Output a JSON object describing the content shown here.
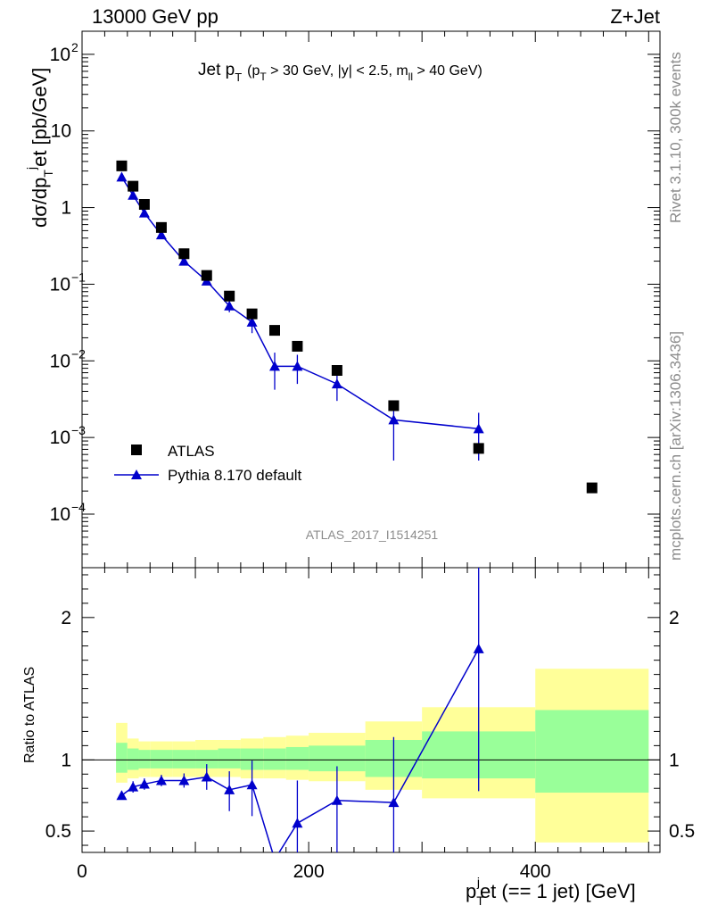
{
  "header": {
    "left": "13000 GeV pp",
    "right": "Z+Jet"
  },
  "side": {
    "rivet": "Rivet 3.1.10,  300k events",
    "mcplots": "mcplots.cern.ch [arXiv:1306.3436]"
  },
  "plot_title": {
    "main": "Jet p",
    "main_sub": "T",
    "cond_open": "(p",
    "cond_sub": "T",
    "cond_mid": " > 30 GeV, |y| < 2.5, m",
    "cond_sub2": "ll",
    "cond_end": " > 40 GeV)"
  },
  "ylabel_main": "dσ/dp",
  "ylabel_main_sup": "j",
  "ylabel_main_sub": "T",
  "ylabel_main_tail": "et [pb/GeV]",
  "ylabel_ratio": "Ratio to ATLAS",
  "xlabel": {
    "pre": "p",
    "sup": "j",
    "sub": "T",
    "post": "et (== 1 jet) [GeV]"
  },
  "watermark": "ATLAS_2017_I1514251",
  "legend": {
    "data": "ATLAS",
    "mc": "Pythia 8.170 default"
  },
  "colors": {
    "mc": "#0000cc",
    "data": "#000000",
    "band_inner": "#99ff99",
    "band_outer": "#ffff99"
  },
  "yticks_main": [
    {
      "v": 100,
      "base": "10",
      "exp": "2"
    },
    {
      "v": 10,
      "base": "10",
      "exp": ""
    },
    {
      "v": 1,
      "base": "1",
      "exp": ""
    },
    {
      "v": 0.1,
      "base": "10",
      "exp": "−1"
    },
    {
      "v": 0.01,
      "base": "10",
      "exp": "−2"
    },
    {
      "v": 0.001,
      "base": "10",
      "exp": "−3"
    },
    {
      "v": 0.0001,
      "base": "10",
      "exp": "−4"
    }
  ],
  "yticks_ratio": [
    {
      "v": 2,
      "label": "2"
    },
    {
      "v": 1,
      "label": "1"
    },
    {
      "v": 0.5,
      "label": "0.5"
    }
  ],
  "xticks": [
    {
      "v": 0,
      "label": "0"
    },
    {
      "v": 200,
      "label": "200"
    },
    {
      "v": 400,
      "label": "400"
    }
  ],
  "chart_data": {
    "type": "scatter",
    "title": "Jet pT (pT > 30 GeV, |y| < 2.5, mll > 40 GeV)",
    "xlim": [
      0,
      510
    ],
    "ylim_main": [
      2e-05,
      200
    ],
    "yscale_main": "log",
    "ylim_ratio": [
      0.35,
      2.35
    ],
    "ratio_reference": 1,
    "grid": false,
    "legend_position": "lower-left",
    "series": [
      {
        "name": "ATLAS",
        "marker": "square",
        "x": [
          35,
          45,
          55,
          70,
          90,
          110,
          130,
          150,
          170,
          190,
          225,
          275,
          350,
          450
        ],
        "y": [
          3.5,
          1.9,
          1.1,
          0.55,
          0.25,
          0.13,
          0.07,
          0.041,
          0.025,
          0.0155,
          0.0075,
          0.0026,
          0.00072,
          0.00022
        ]
      },
      {
        "name": "Pythia 8.170 default",
        "marker": "triangle",
        "x": [
          35,
          45,
          55,
          70,
          90,
          110,
          130,
          150,
          170,
          190,
          225,
          275,
          350
        ],
        "y": [
          2.5,
          1.45,
          0.85,
          0.44,
          0.2,
          0.11,
          0.052,
          0.032,
          0.0085,
          0.0085,
          0.005,
          0.0017,
          0.0013
        ],
        "yerr_lo": [
          0.1,
          0.05,
          0.03,
          0.02,
          0.01,
          0.008,
          0.009,
          0.009,
          0.0043,
          0.0035,
          0.002,
          0.0012,
          0.0008
        ],
        "yerr_hi": [
          0.1,
          0.05,
          0.03,
          0.02,
          0.01,
          0.008,
          0.009,
          0.009,
          0.0043,
          0.0035,
          0.002,
          0.0012,
          0.0008
        ],
        "ratio": [
          0.75,
          0.81,
          0.83,
          0.855,
          0.855,
          0.88,
          0.79,
          0.825,
          0.3,
          0.555,
          0.715,
          0.7,
          1.78
        ],
        "ratio_err_lo": [
          0.03,
          0.04,
          0.04,
          0.04,
          0.05,
          0.09,
          0.15,
          0.22,
          0.3,
          0.3,
          0.4,
          0.45,
          1.0
        ],
        "ratio_err_hi": [
          0.03,
          0.04,
          0.04,
          0.04,
          0.05,
          0.09,
          0.13,
          0.17,
          0.3,
          0.3,
          0.24,
          0.46,
          0.6
        ]
      }
    ],
    "ratio_band_bins": [
      {
        "x0": 30,
        "x1": 40,
        "inner_lo": 0.91,
        "inner_hi": 1.12,
        "outer_lo": 0.84,
        "outer_hi": 1.26
      },
      {
        "x0": 40,
        "x1": 50,
        "inner_lo": 0.93,
        "inner_hi": 1.08,
        "outer_lo": 0.87,
        "outer_hi": 1.15
      },
      {
        "x0": 50,
        "x1": 60,
        "inner_lo": 0.94,
        "inner_hi": 1.07,
        "outer_lo": 0.88,
        "outer_hi": 1.13
      },
      {
        "x0": 60,
        "x1": 80,
        "inner_lo": 0.94,
        "inner_hi": 1.07,
        "outer_lo": 0.88,
        "outer_hi": 1.13
      },
      {
        "x0": 80,
        "x1": 100,
        "inner_lo": 0.94,
        "inner_hi": 1.07,
        "outer_lo": 0.88,
        "outer_hi": 1.13
      },
      {
        "x0": 100,
        "x1": 120,
        "inner_lo": 0.94,
        "inner_hi": 1.07,
        "outer_lo": 0.88,
        "outer_hi": 1.14
      },
      {
        "x0": 120,
        "x1": 140,
        "inner_lo": 0.94,
        "inner_hi": 1.08,
        "outer_lo": 0.88,
        "outer_hi": 1.14
      },
      {
        "x0": 140,
        "x1": 160,
        "inner_lo": 0.93,
        "inner_hi": 1.08,
        "outer_lo": 0.87,
        "outer_hi": 1.15
      },
      {
        "x0": 160,
        "x1": 180,
        "inner_lo": 0.93,
        "inner_hi": 1.08,
        "outer_lo": 0.87,
        "outer_hi": 1.16
      },
      {
        "x0": 180,
        "x1": 200,
        "inner_lo": 0.93,
        "inner_hi": 1.09,
        "outer_lo": 0.86,
        "outer_hi": 1.17
      },
      {
        "x0": 200,
        "x1": 250,
        "inner_lo": 0.92,
        "inner_hi": 1.1,
        "outer_lo": 0.85,
        "outer_hi": 1.19
      },
      {
        "x0": 250,
        "x1": 300,
        "inner_lo": 0.88,
        "inner_hi": 1.14,
        "outer_lo": 0.79,
        "outer_hi": 1.27
      },
      {
        "x0": 300,
        "x1": 400,
        "inner_lo": 0.87,
        "inner_hi": 1.2,
        "outer_lo": 0.73,
        "outer_hi": 1.37
      },
      {
        "x0": 400,
        "x1": 500,
        "inner_lo": 0.77,
        "inner_hi": 1.35,
        "outer_lo": 0.42,
        "outer_hi": 1.64
      }
    ]
  }
}
